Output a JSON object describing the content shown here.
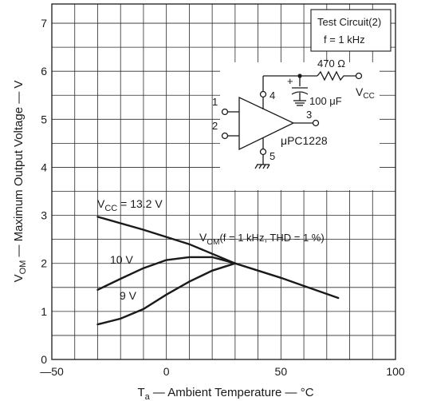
{
  "chart_data": {
    "type": "line",
    "x": {
      "label_main": "T",
      "label_sub": "a",
      "label_rest": " — Ambient Temperature — °C",
      "range": [
        -50,
        100
      ],
      "ticks": [
        -50,
        0,
        50,
        100
      ],
      "tick_labels": [
        "—50",
        "0",
        "50",
        "100"
      ]
    },
    "y": {
      "label_main": "V",
      "label_sub": "OM",
      "label_rest": " — Maximum Output Voltage — V",
      "range": [
        0,
        7.4
      ],
      "ticks": [
        0,
        1,
        2,
        3,
        4,
        5,
        6,
        7
      ],
      "tick_labels": [
        "0",
        "1",
        "2",
        "3",
        "4",
        "5",
        "6",
        "7"
      ]
    },
    "grid": true,
    "series": [
      {
        "name": "13.2 V",
        "points": [
          [
            -30,
            2.97
          ],
          [
            -10,
            2.7
          ],
          [
            10,
            2.4
          ],
          [
            30,
            2.0
          ],
          [
            50,
            1.7
          ],
          [
            75,
            1.28
          ]
        ]
      },
      {
        "name": "10 V",
        "points": [
          [
            -30,
            1.45
          ],
          [
            -20,
            1.68
          ],
          [
            -10,
            1.9
          ],
          [
            0,
            2.07
          ],
          [
            10,
            2.13
          ],
          [
            20,
            2.13
          ],
          [
            30,
            2.0
          ]
        ]
      },
      {
        "name": "9 V",
        "points": [
          [
            -30,
            0.73
          ],
          [
            -20,
            0.85
          ],
          [
            -10,
            1.05
          ],
          [
            0,
            1.35
          ],
          [
            10,
            1.62
          ],
          [
            20,
            1.85
          ],
          [
            30,
            2.0
          ]
        ]
      }
    ],
    "annotations": {
      "vcc_main": "V",
      "vcc_sub": "CC",
      "vcc_rest": " = 13.2 V",
      "v10": "10 V",
      "v9": "9 V",
      "vom_main": "V",
      "vom_sub": "OM",
      "vom_rest": "(f = 1  kHz,  THD = 1  %)"
    },
    "legend_box": {
      "line1": "Test Circuit(2)",
      "line2": "f = 1  kHz"
    },
    "circuit": {
      "resistor": "470  Ω",
      "capacitor": "100  μF",
      "supply_main": "V",
      "supply_sub": "CC",
      "ic": "μPC1228",
      "plus": "+",
      "pins": [
        "1",
        "2",
        "3",
        "4",
        "5"
      ]
    }
  }
}
